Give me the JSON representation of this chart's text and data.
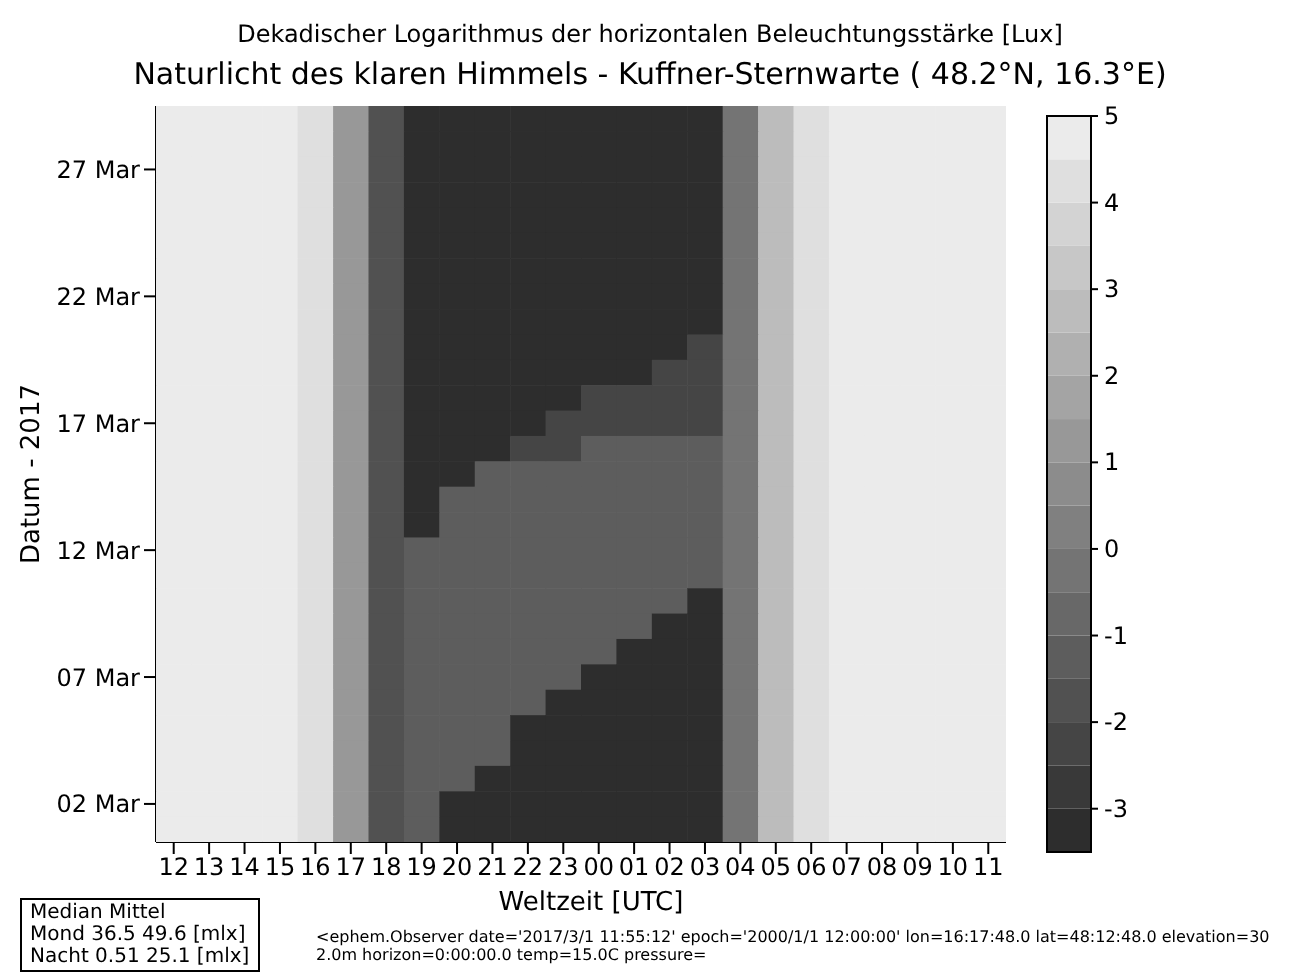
{
  "chart_data": {
    "type": "heatmap",
    "clabel": "Dekadischer Logarithmus der horizontalen Beleuchtungsstärke [Lux]",
    "title": "Naturlicht des klaren Himmels - Kuffner-Sternwarte ( 48.2°N, 16.3°E)",
    "xlabel": "Weltzeit [UTC]",
    "ylabel": "Datum - 2017",
    "categories": [
      "12",
      "13",
      "14",
      "15",
      "16",
      "17",
      "18",
      "19",
      "20",
      "21",
      "22",
      "23",
      "00",
      "01",
      "02",
      "03",
      "04",
      "05",
      "06",
      "07",
      "08",
      "09",
      "10",
      "11"
    ],
    "y_categories": [
      null,
      null,
      "27 Mar",
      null,
      null,
      null,
      null,
      "22 Mar",
      null,
      null,
      null,
      null,
      "17 Mar",
      null,
      null,
      null,
      null,
      "12 Mar",
      null,
      null,
      null,
      null,
      "07 Mar",
      null,
      null,
      null,
      null,
      "02 Mar",
      null
    ],
    "cells": [
      [
        4.7,
        4.7,
        4.7,
        4.6,
        4.2,
        1.2,
        -1.8,
        -3.2,
        -3.2,
        -3.2,
        -3.2,
        -3.2,
        -3.2,
        -3.2,
        -3.2,
        -3.2,
        -0.2,
        2.7,
        4.2,
        4.7,
        4.7,
        4.7,
        4.7,
        4.7
      ],
      [
        4.7,
        4.7,
        4.7,
        4.6,
        4.2,
        1.2,
        -1.8,
        -3.2,
        -3.2,
        -3.2,
        -3.2,
        -3.2,
        -3.2,
        -3.2,
        -3.2,
        -3.2,
        -0.2,
        2.7,
        4.2,
        4.7,
        4.7,
        4.7,
        4.7,
        4.7
      ],
      [
        4.7,
        4.7,
        4.7,
        4.6,
        4.2,
        1.2,
        -1.8,
        -3.2,
        -3.2,
        -3.2,
        -3.2,
        -3.2,
        -3.2,
        -3.2,
        -3.2,
        -3.2,
        -0.2,
        2.7,
        4.2,
        4.7,
        4.7,
        4.7,
        4.7,
        4.7
      ],
      [
        4.7,
        4.7,
        4.7,
        4.6,
        4.2,
        1.2,
        -1.8,
        -3.2,
        -3.2,
        -3.2,
        -3.2,
        -3.2,
        -3.2,
        -3.2,
        -3.2,
        -3.2,
        -0.2,
        2.7,
        4.2,
        4.7,
        4.7,
        4.7,
        4.7,
        4.7
      ],
      [
        4.7,
        4.7,
        4.7,
        4.6,
        4.2,
        1.2,
        -1.8,
        -3.2,
        -3.2,
        -3.2,
        -3.2,
        -3.2,
        -3.2,
        -3.2,
        -3.2,
        -3.2,
        -0.2,
        2.7,
        4.2,
        4.7,
        4.7,
        4.7,
        4.7,
        4.7
      ],
      [
        4.7,
        4.7,
        4.7,
        4.6,
        4.2,
        1.2,
        -1.8,
        -3.2,
        -3.2,
        -3.2,
        -3.2,
        -3.2,
        -3.2,
        -3.2,
        -3.2,
        -3.2,
        -0.2,
        2.7,
        4.2,
        4.7,
        4.7,
        4.7,
        4.7,
        4.7
      ],
      [
        4.7,
        4.7,
        4.7,
        4.6,
        4.2,
        1.2,
        -1.8,
        -3.2,
        -3.2,
        -3.2,
        -3.2,
        -3.2,
        -3.2,
        -3.2,
        -3.2,
        -3.2,
        -0.2,
        2.7,
        4.2,
        4.7,
        4.7,
        4.7,
        4.7,
        4.7
      ],
      [
        4.7,
        4.7,
        4.7,
        4.6,
        4.2,
        1.2,
        -1.8,
        -3.2,
        -3.2,
        -3.2,
        -3.2,
        -3.2,
        -3.2,
        -3.2,
        -3.2,
        -3.2,
        -0.2,
        2.7,
        4.2,
        4.7,
        4.7,
        4.7,
        4.7,
        4.7
      ],
      [
        4.7,
        4.7,
        4.7,
        4.6,
        4.2,
        1.2,
        -1.8,
        -3.2,
        -3.2,
        -3.2,
        -3.2,
        -3.2,
        -3.2,
        -3.2,
        -3.2,
        -3.2,
        -0.2,
        2.7,
        4.2,
        4.7,
        4.7,
        4.7,
        4.7,
        4.7
      ],
      [
        4.7,
        4.7,
        4.7,
        4.6,
        4.2,
        1.2,
        -1.8,
        -3.2,
        -3.2,
        -3.2,
        -3.2,
        -3.2,
        -3.2,
        -3.2,
        -3.2,
        -2.2,
        -0.2,
        2.7,
        4.2,
        4.7,
        4.7,
        4.7,
        4.7,
        4.7
      ],
      [
        4.7,
        4.7,
        4.7,
        4.6,
        4.2,
        1.2,
        -1.8,
        -3.2,
        -3.2,
        -3.2,
        -3.2,
        -3.2,
        -3.2,
        -3.2,
        -2.2,
        -2.2,
        -0.2,
        2.7,
        4.2,
        4.7,
        4.7,
        4.7,
        4.7,
        4.7
      ],
      [
        4.7,
        4.7,
        4.7,
        4.6,
        4.2,
        1.2,
        -1.8,
        -3.2,
        -3.2,
        -3.2,
        -3.2,
        -3.2,
        -2.2,
        -2.2,
        -2.2,
        -2.2,
        -0.2,
        2.7,
        4.2,
        4.7,
        4.7,
        4.7,
        4.7,
        4.7
      ],
      [
        4.7,
        4.7,
        4.7,
        4.6,
        4.2,
        1.2,
        -1.8,
        -3.2,
        -3.2,
        -3.2,
        -3.2,
        -2.2,
        -2.2,
        -2.2,
        -2.2,
        -2.2,
        -0.2,
        2.7,
        4.2,
        4.7,
        4.7,
        4.7,
        4.7,
        4.7
      ],
      [
        4.7,
        4.7,
        4.7,
        4.6,
        4.2,
        1.2,
        -1.8,
        -3.2,
        -3.2,
        -3.2,
        -2.2,
        -2.2,
        -1.3,
        -1.3,
        -1.3,
        -1.3,
        -0.2,
        2.7,
        4.2,
        4.7,
        4.7,
        4.7,
        4.7,
        4.7
      ],
      [
        4.7,
        4.7,
        4.7,
        4.6,
        4.2,
        1.2,
        -1.8,
        -3.2,
        -3.2,
        -1.3,
        -1.3,
        -1.3,
        -1.3,
        -1.3,
        -1.3,
        -1.3,
        -0.2,
        2.7,
        4.2,
        4.7,
        4.7,
        4.7,
        4.7,
        4.7
      ],
      [
        4.7,
        4.7,
        4.7,
        4.6,
        4.2,
        1.2,
        -1.8,
        -3.2,
        -1.3,
        -1.3,
        -1.3,
        -1.3,
        -1.3,
        -1.3,
        -1.3,
        -1.3,
        -0.2,
        2.7,
        4.2,
        4.7,
        4.7,
        4.7,
        4.7,
        4.7
      ],
      [
        4.7,
        4.7,
        4.7,
        4.6,
        4.2,
        1.2,
        -1.8,
        -3.2,
        -1.3,
        -1.3,
        -1.3,
        -1.3,
        -1.3,
        -1.3,
        -1.3,
        -1.3,
        -0.2,
        2.7,
        4.2,
        4.7,
        4.7,
        4.7,
        4.7,
        4.7
      ],
      [
        4.7,
        4.7,
        4.7,
        4.6,
        4.2,
        1.2,
        -1.8,
        -1.3,
        -1.3,
        -1.3,
        -1.3,
        -1.3,
        -1.3,
        -1.3,
        -1.3,
        -1.3,
        -0.2,
        2.7,
        4.2,
        4.7,
        4.7,
        4.7,
        4.7,
        4.7
      ],
      [
        4.7,
        4.7,
        4.7,
        4.6,
        4.2,
        1.2,
        -1.8,
        -1.3,
        -1.3,
        -1.3,
        -1.3,
        -1.3,
        -1.3,
        -1.3,
        -1.3,
        -1.3,
        -0.2,
        2.7,
        4.2,
        4.7,
        4.7,
        4.7,
        4.7,
        4.7
      ],
      [
        4.7,
        4.7,
        4.7,
        4.6,
        4.2,
        1.2,
        -1.8,
        -1.3,
        -1.3,
        -1.3,
        -1.3,
        -1.3,
        -1.3,
        -1.3,
        -1.3,
        -3.2,
        -0.2,
        2.7,
        4.2,
        4.7,
        4.7,
        4.7,
        4.7,
        4.7
      ],
      [
        4.7,
        4.7,
        4.7,
        4.6,
        4.2,
        1.2,
        -1.8,
        -1.3,
        -1.3,
        -1.3,
        -1.3,
        -1.3,
        -1.3,
        -1.3,
        -3.2,
        -3.2,
        -0.2,
        2.7,
        4.2,
        4.7,
        4.7,
        4.7,
        4.7,
        4.7
      ],
      [
        4.7,
        4.7,
        4.7,
        4.6,
        4.2,
        1.2,
        -1.8,
        -1.3,
        -1.3,
        -1.3,
        -1.3,
        -1.3,
        -1.3,
        -3.2,
        -3.2,
        -3.2,
        -0.2,
        2.7,
        4.2,
        4.7,
        4.7,
        4.7,
        4.7,
        4.7
      ],
      [
        4.7,
        4.7,
        4.7,
        4.6,
        4.2,
        1.2,
        -1.8,
        -1.3,
        -1.3,
        -1.3,
        -1.3,
        -1.3,
        -3.2,
        -3.2,
        -3.2,
        -3.2,
        -0.2,
        2.7,
        4.2,
        4.7,
        4.7,
        4.7,
        4.7,
        4.7
      ],
      [
        4.7,
        4.7,
        4.7,
        4.6,
        4.2,
        1.2,
        -1.8,
        -1.3,
        -1.3,
        -1.3,
        -1.3,
        -3.2,
        -3.2,
        -3.2,
        -3.2,
        -3.2,
        -0.2,
        2.7,
        4.2,
        4.7,
        4.7,
        4.7,
        4.7,
        4.7
      ],
      [
        4.7,
        4.7,
        4.7,
        4.6,
        4.2,
        1.2,
        -1.8,
        -1.3,
        -1.3,
        -1.3,
        -3.2,
        -3.2,
        -3.2,
        -3.2,
        -3.2,
        -3.2,
        -0.2,
        2.7,
        4.2,
        4.7,
        4.7,
        4.7,
        4.7,
        4.7
      ],
      [
        4.7,
        4.7,
        4.7,
        4.6,
        4.2,
        1.2,
        -1.8,
        -1.3,
        -1.3,
        -1.3,
        -3.2,
        -3.2,
        -3.2,
        -3.2,
        -3.2,
        -3.2,
        -0.2,
        2.7,
        4.2,
        4.7,
        4.7,
        4.7,
        4.7,
        4.7
      ],
      [
        4.7,
        4.7,
        4.7,
        4.6,
        4.2,
        1.2,
        -1.8,
        -1.3,
        -1.3,
        -3.2,
        -3.2,
        -3.2,
        -3.2,
        -3.2,
        -3.2,
        -3.2,
        -0.2,
        2.7,
        4.2,
        4.7,
        4.7,
        4.7,
        4.7,
        4.7
      ],
      [
        4.7,
        4.7,
        4.7,
        4.6,
        4.2,
        1.2,
        -1.8,
        -1.3,
        -3.2,
        -3.2,
        -3.2,
        -3.2,
        -3.2,
        -3.2,
        -3.2,
        -3.2,
        -0.2,
        2.7,
        4.2,
        4.7,
        4.7,
        4.7,
        4.7,
        4.7
      ],
      [
        4.7,
        4.7,
        4.7,
        4.6,
        4.2,
        1.2,
        -1.8,
        -1.3,
        -3.2,
        -3.2,
        -3.2,
        -3.2,
        -3.2,
        -3.2,
        -3.2,
        -3.2,
        -0.2,
        2.7,
        4.2,
        4.7,
        4.7,
        4.7,
        4.7,
        4.7
      ]
    ],
    "clim": [
      -3.5,
      5
    ],
    "cticks": [
      -3,
      -2,
      -1,
      0,
      1,
      2,
      3,
      4,
      5
    ],
    "annotations": [
      "Median Mittel",
      "Mond 36.5 49.6 [mlx]",
      "Nacht 0.51 25.1 [mlx]",
      "<ephem.Observer date='2017/3/1 11:55:12' epoch='2000/1/1 12:00:00' lon=16:17:48.0 lat=48:12:48.0 elevation=302.0m horizon=0:00:00.0 temp=15.0C pressure="
    ]
  }
}
